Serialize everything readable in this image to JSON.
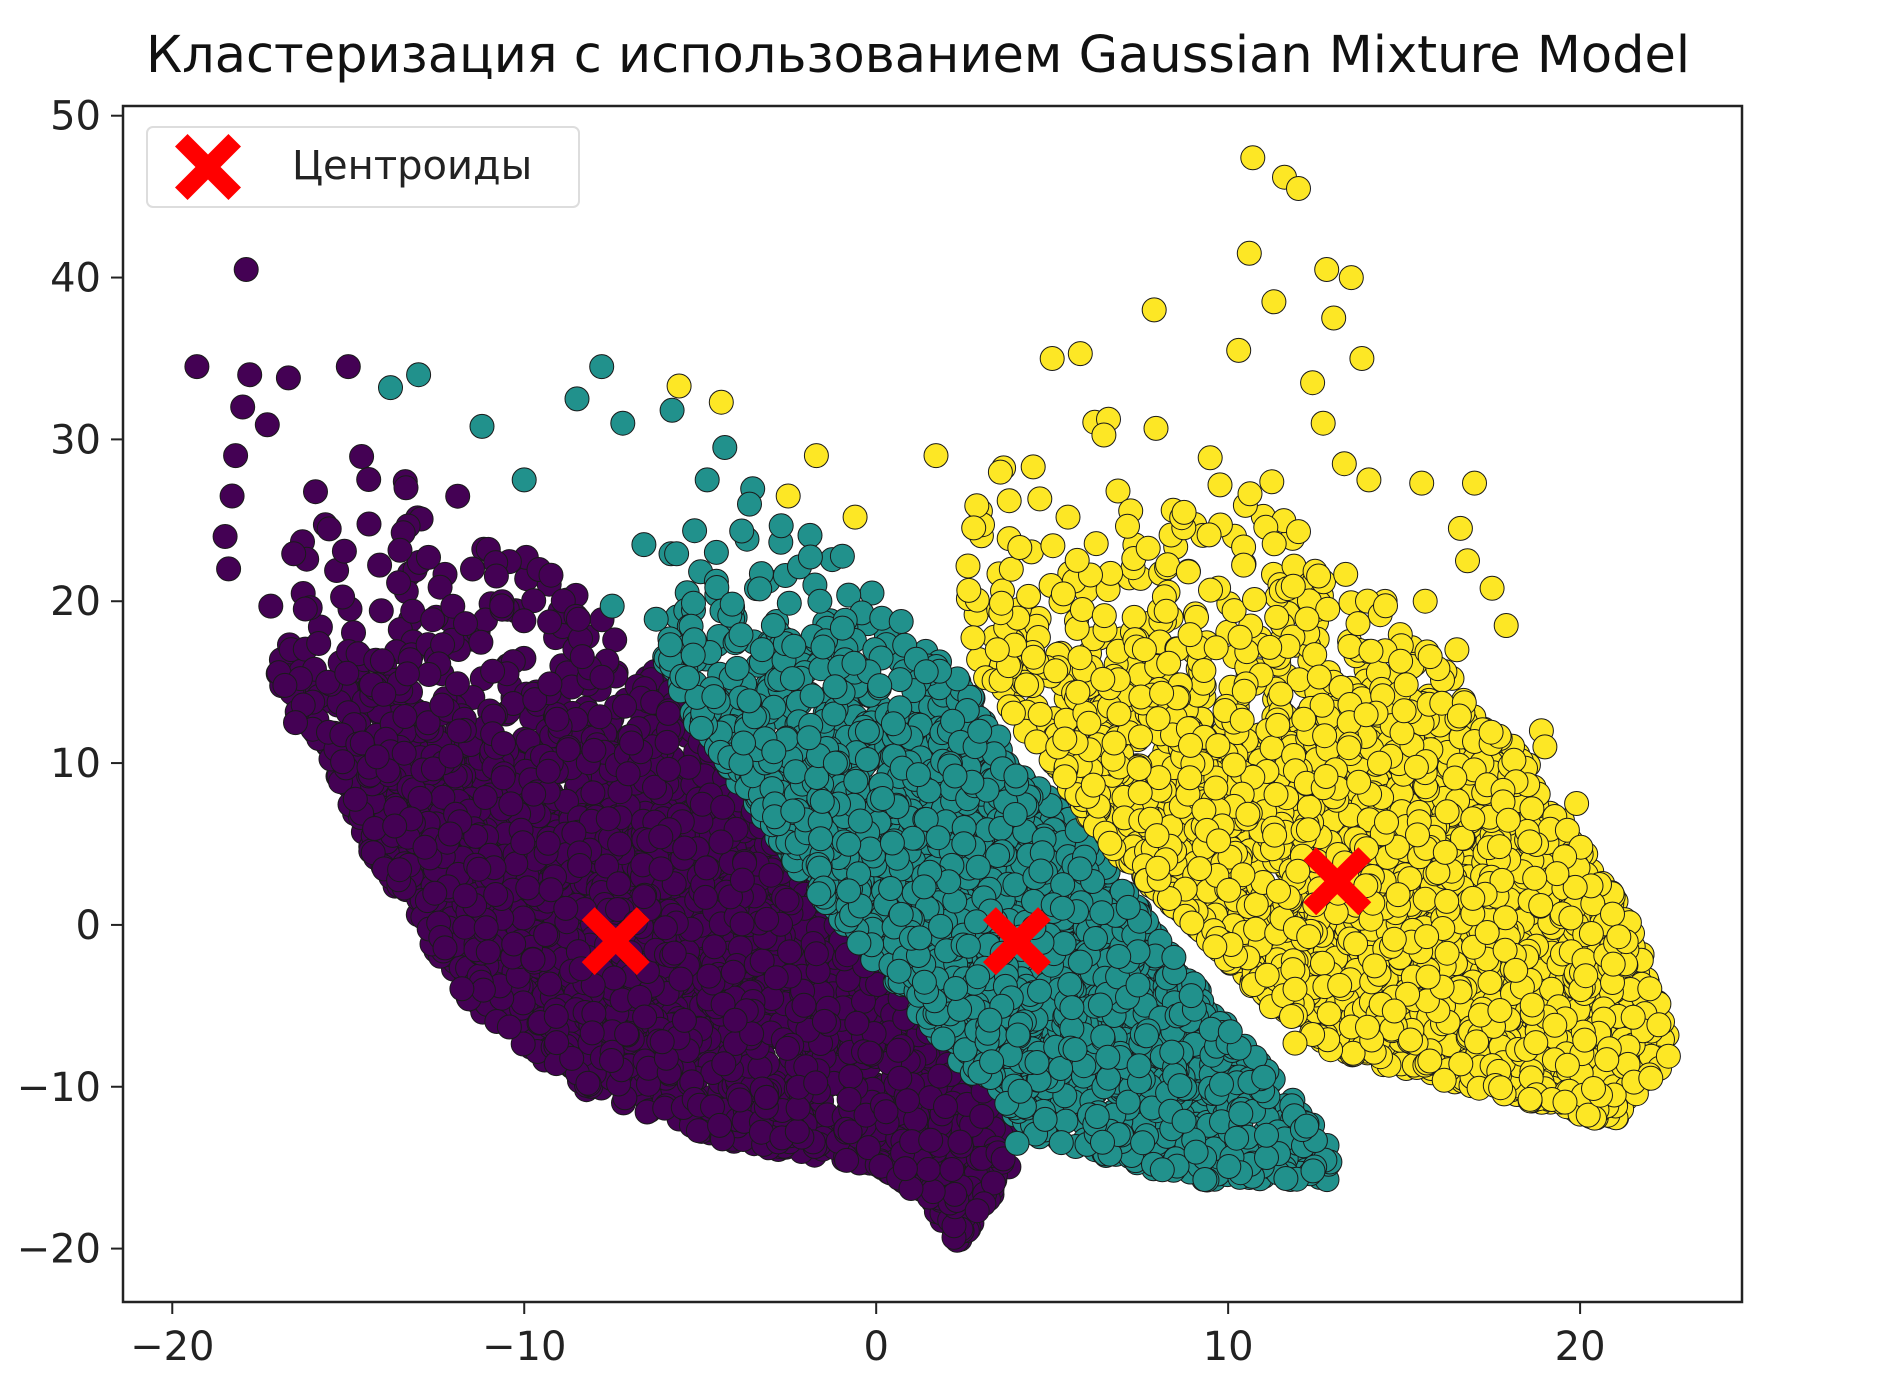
{
  "chart_data": {
    "type": "scatter",
    "title": "Кластеризация с использованием Gaussian Mixture Model",
    "xlabel": "",
    "ylabel": "",
    "xlim": [
      -21.4,
      24.6
    ],
    "ylim": [
      -23.3,
      50.6
    ],
    "x_ticks": [
      -20,
      -10,
      0,
      10,
      20
    ],
    "y_ticks": [
      -20,
      -10,
      0,
      10,
      20,
      30,
      40,
      50
    ],
    "x_tick_labels": [
      "−20",
      "−10",
      "0",
      "10",
      "20"
    ],
    "y_tick_labels": [
      "−20",
      "−10",
      "0",
      "10",
      "20",
      "30",
      "40",
      "50"
    ],
    "grid": false,
    "legend": {
      "placement": "top-left",
      "entries": [
        "Центроиды"
      ]
    },
    "series": [
      {
        "cluster": 0,
        "color": "#440154",
        "outliers": [
          [
            -17.9,
            40.5
          ],
          [
            -19.3,
            34.5
          ],
          [
            -17.8,
            34.0
          ],
          [
            -16.7,
            33.8
          ],
          [
            -15.0,
            34.5
          ],
          [
            -18.0,
            32.0
          ],
          [
            -17.3,
            30.9
          ],
          [
            -18.2,
            29.0
          ],
          [
            -18.3,
            26.5
          ],
          [
            -18.5,
            24.0
          ],
          [
            -18.4,
            22.0
          ],
          [
            -17.2,
            19.7
          ],
          [
            -16.8,
            14.8
          ],
          [
            -16.5,
            12.5
          ]
        ],
        "points": []
      },
      {
        "cluster": 1,
        "color": "#21918c",
        "outliers": [
          [
            -13.8,
            33.2
          ],
          [
            -13.0,
            34.0
          ],
          [
            -11.2,
            30.8
          ],
          [
            -10.0,
            27.5
          ],
          [
            -8.5,
            32.5
          ],
          [
            -7.8,
            34.5
          ],
          [
            -7.2,
            31.0
          ],
          [
            -5.8,
            31.8
          ],
          [
            -4.3,
            29.5
          ],
          [
            -7.5,
            19.7
          ],
          [
            -4.8,
            27.5
          ],
          [
            -3.6,
            26.0
          ],
          [
            -6.6,
            23.5
          ],
          [
            4.0,
            -13.5
          ]
        ],
        "points": []
      },
      {
        "cluster": 2,
        "color": "#fde725",
        "outliers": [
          [
            10.7,
            47.4
          ],
          [
            11.6,
            46.2
          ],
          [
            12.0,
            45.5
          ],
          [
            10.6,
            41.5
          ],
          [
            12.8,
            40.5
          ],
          [
            13.5,
            40.0
          ],
          [
            11.3,
            38.5
          ],
          [
            13.0,
            37.5
          ],
          [
            7.9,
            38.0
          ],
          [
            13.8,
            35.0
          ],
          [
            10.3,
            35.5
          ],
          [
            5.8,
            35.3
          ],
          [
            5.0,
            35.0
          ],
          [
            12.4,
            33.5
          ],
          [
            12.7,
            31.0
          ],
          [
            1.7,
            29.0
          ],
          [
            -1.7,
            29.0
          ],
          [
            -5.6,
            33.3
          ],
          [
            -4.4,
            32.3
          ],
          [
            -2.5,
            26.5
          ],
          [
            -0.6,
            25.2
          ],
          [
            13.3,
            28.5
          ],
          [
            14.0,
            27.5
          ],
          [
            15.5,
            27.3
          ],
          [
            17.0,
            27.3
          ],
          [
            16.6,
            24.5
          ],
          [
            12.0,
            24.3
          ],
          [
            16.8,
            22.5
          ],
          [
            15.6,
            20.0
          ],
          [
            17.5,
            20.8
          ],
          [
            17.9,
            18.5
          ],
          [
            16.5,
            17.0
          ],
          [
            18.9,
            12.0
          ],
          [
            19.0,
            11.0
          ],
          [
            19.9,
            7.5
          ],
          [
            8.0,
            3.5
          ],
          [
            11.9,
            -7.3
          ]
        ],
        "points": []
      }
    ],
    "centroids": {
      "name": "Центроиды",
      "color": "#ff0000",
      "marker": "X",
      "x": [
        -7.4,
        4.0,
        13.1
      ],
      "y": [
        -1.0,
        -1.0,
        2.7
      ]
    }
  }
}
